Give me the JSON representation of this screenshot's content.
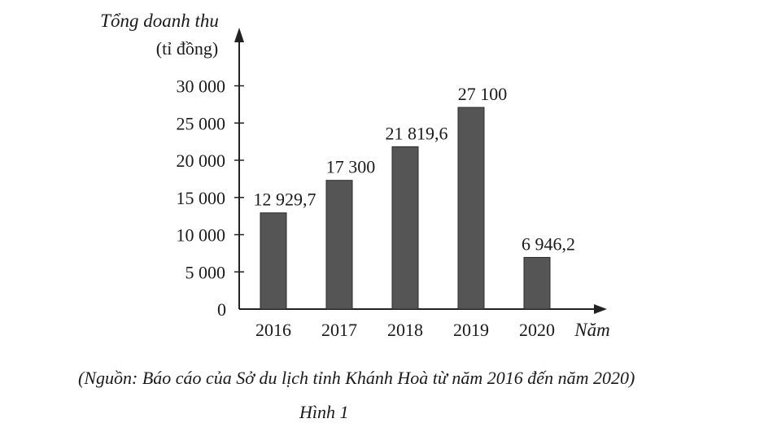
{
  "chart_data": {
    "type": "bar",
    "title": "",
    "ylabel_line1": "Tổng doanh thu",
    "ylabel_line2": "(tỉ đồng)",
    "xlabel": "Năm",
    "categories": [
      "2016",
      "2017",
      "2018",
      "2019",
      "2020"
    ],
    "values": [
      12929.7,
      17300,
      21819.6,
      27100,
      6946.2
    ],
    "value_labels": [
      "12 929,7",
      "17 300",
      "21 819,6",
      "27 100",
      "6 946,2"
    ],
    "yticks": [
      0,
      5000,
      10000,
      15000,
      20000,
      25000,
      30000
    ],
    "ytick_labels": [
      "0",
      "5 000",
      "10 000",
      "15 000",
      "20 000",
      "25 000",
      "30 000"
    ],
    "ylim": [
      0,
      30000
    ],
    "grid": false,
    "legend": "none",
    "bar_color": "#555555"
  },
  "caption": {
    "source": "(Nguồn: Báo cáo của Sở du lịch tỉnh Khánh Hoà từ năm 2016 đến năm 2020)",
    "figure": "Hình 1"
  }
}
